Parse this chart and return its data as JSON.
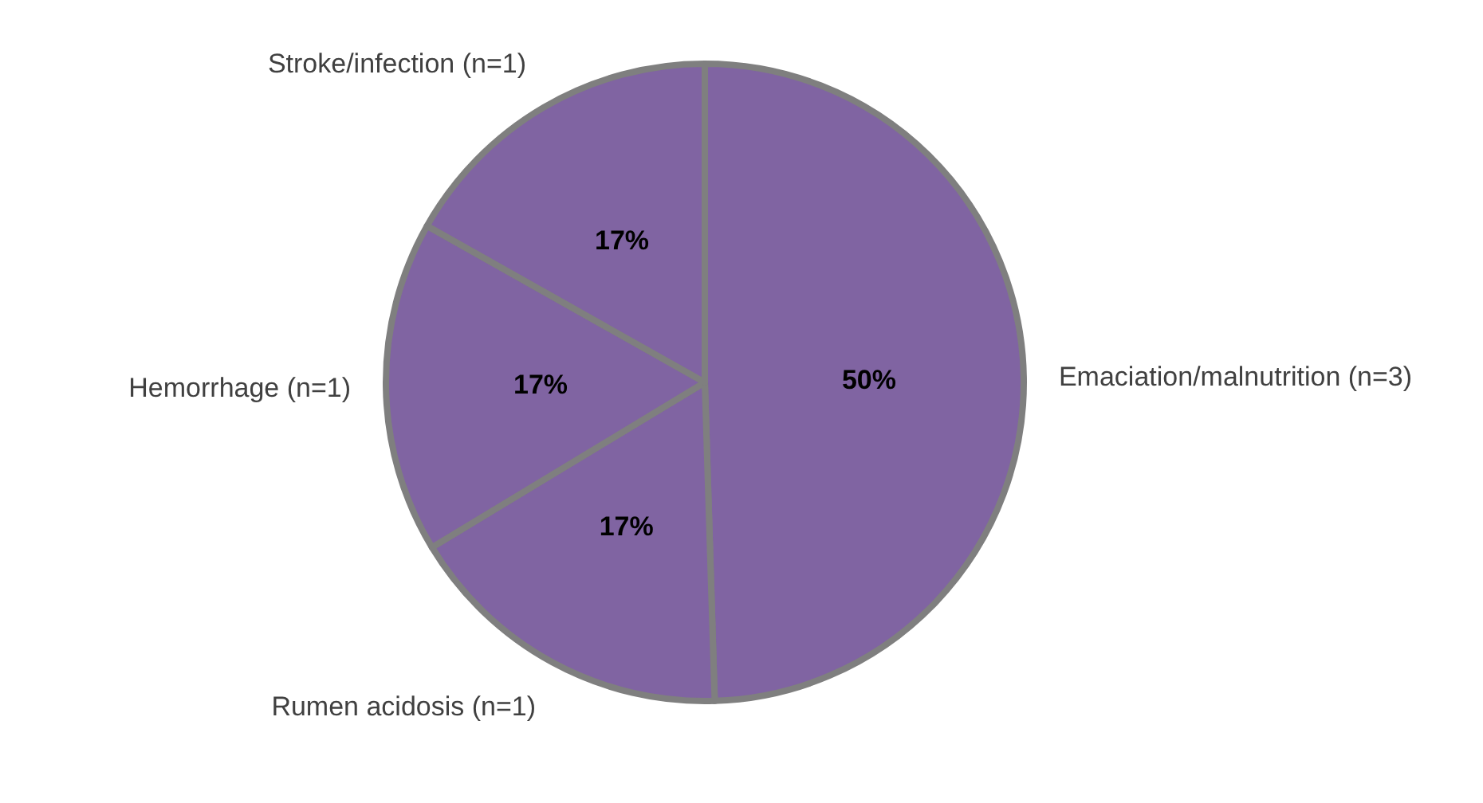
{
  "chart_data": {
    "type": "pie",
    "categories": [
      "Emaciation/malnutrition (n=3)",
      "Rumen acidosis (n=1)",
      "Hemorrhage (n=1)",
      "Stroke/infection (n=1)"
    ],
    "values": [
      50,
      17,
      17,
      17
    ],
    "value_labels": [
      "50%",
      "17%",
      "17%",
      "17%"
    ],
    "colors": [
      "#8064a2",
      "#8064a2",
      "#8064a2",
      "#8064a2"
    ]
  }
}
